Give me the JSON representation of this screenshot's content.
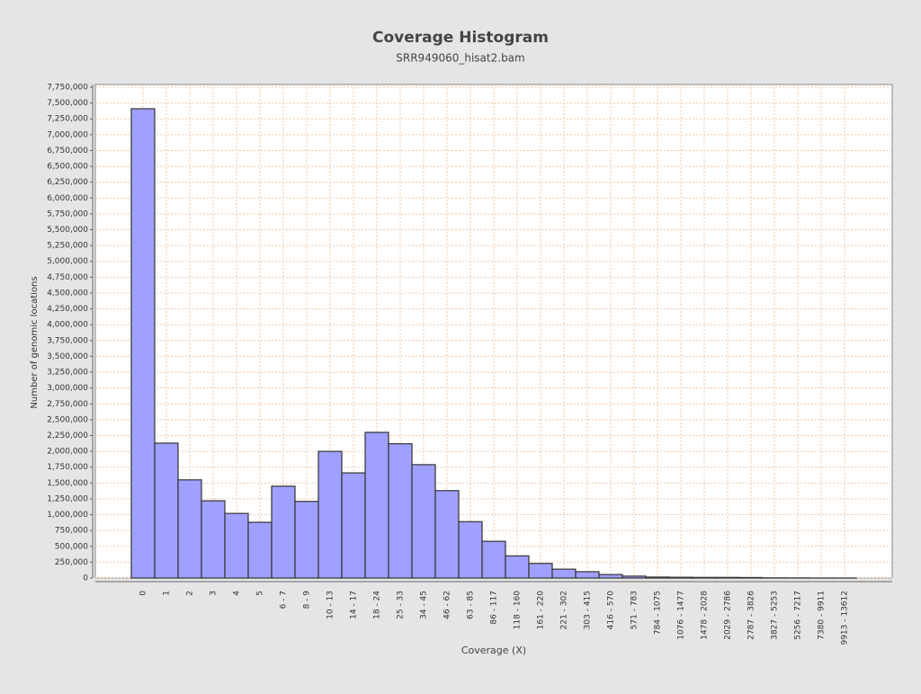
{
  "chart_data": {
    "type": "bar",
    "title": "Coverage Histogram",
    "subtitle": "SRR949060_hisat2.bam",
    "x_label": "Coverage (X)",
    "y_label": "Number of genomic locations",
    "categories": [
      "0",
      "1",
      "2",
      "3",
      "4",
      "5",
      "6 - 7",
      "8 - 9",
      "10 - 13",
      "14 - 17",
      "18 - 24",
      "25 - 33",
      "34 - 45",
      "46 - 62",
      "63 - 85",
      "86 - 117",
      "118 - 160",
      "161 - 220",
      "221 - 302",
      "303 - 415",
      "416 - 570",
      "571 - 783",
      "784 - 1075",
      "1076 - 1477",
      "1478 - 2028",
      "2029 - 2786",
      "2787 - 3826",
      "3827 - 5253",
      "5256 - 7217",
      "7380 - 9911",
      "9913 - 13612"
    ],
    "values": [
      7410000,
      2130000,
      1550000,
      1220000,
      1020000,
      880000,
      1450000,
      1210000,
      2000000,
      1660000,
      2300000,
      2120000,
      1790000,
      1380000,
      890000,
      580000,
      350000,
      230000,
      140000,
      100000,
      55000,
      30000,
      15000,
      12000,
      10000,
      10000,
      8000,
      3000,
      2000,
      1000,
      1000
    ],
    "color": "#a0a0ff",
    "ylim": [
      0,
      7750000
    ],
    "yticks": [
      {
        "value": 0,
        "label": "0"
      },
      {
        "value": 250000,
        "label": "250,000"
      },
      {
        "value": 500000,
        "label": "500,000"
      },
      {
        "value": 750000,
        "label": "750,000"
      },
      {
        "value": 1000000,
        "label": "1,000,000"
      },
      {
        "value": 1250000,
        "label": "1,250,000"
      },
      {
        "value": 1500000,
        "label": "1,500,000"
      },
      {
        "value": 1750000,
        "label": "1,750,000"
      },
      {
        "value": 2000000,
        "label": "2,000,000"
      },
      {
        "value": 2250000,
        "label": "2,250,000"
      },
      {
        "value": 2500000,
        "label": "2,500,000"
      },
      {
        "value": 2750000,
        "label": "2,750,000"
      },
      {
        "value": 3000000,
        "label": "3,000,000"
      },
      {
        "value": 3250000,
        "label": "3,250,000"
      },
      {
        "value": 3500000,
        "label": "3,500,000"
      },
      {
        "value": 3750000,
        "label": "3,750,000"
      },
      {
        "value": 4000000,
        "label": "4,000,000"
      },
      {
        "value": 4250000,
        "label": "4,250,000"
      },
      {
        "value": 4500000,
        "label": "4,500,000"
      },
      {
        "value": 4750000,
        "label": "4,750,000"
      },
      {
        "value": 5000000,
        "label": "5,000,000"
      },
      {
        "value": 5250000,
        "label": "5,250,000"
      },
      {
        "value": 5500000,
        "label": "5,500,000"
      },
      {
        "value": 5750000,
        "label": "5,750,000"
      },
      {
        "value": 6000000,
        "label": "6,000,000"
      },
      {
        "value": 6250000,
        "label": "6,250,000"
      },
      {
        "value": 6500000,
        "label": "6,500,000"
      },
      {
        "value": 6750000,
        "label": "6,750,000"
      },
      {
        "value": 7000000,
        "label": "7,000,000"
      },
      {
        "value": 7250000,
        "label": "7,250,000"
      },
      {
        "value": 7500000,
        "label": "7,500,000"
      },
      {
        "value": 7750000,
        "label": "7,750,000"
      }
    ],
    "grid": true
  }
}
